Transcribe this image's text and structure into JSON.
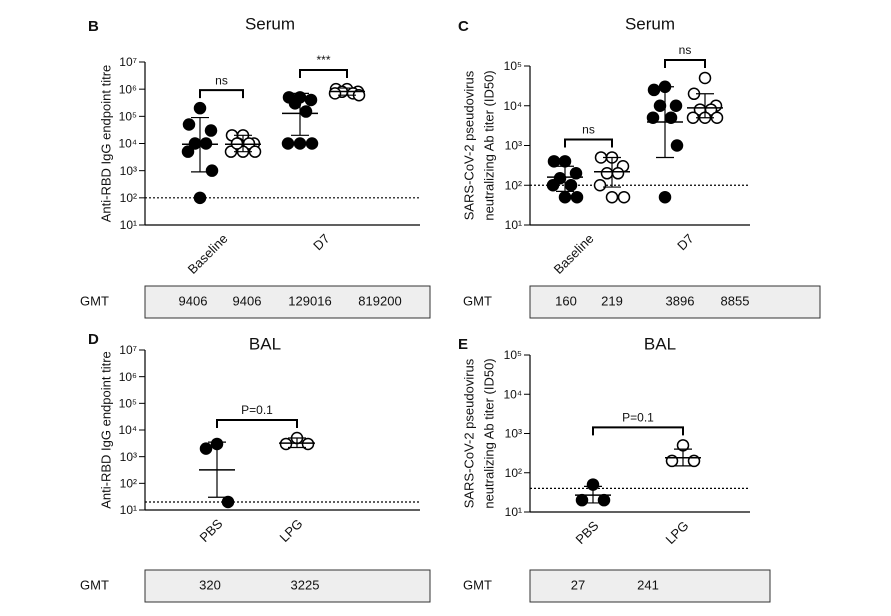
{
  "chart_data": [
    {
      "type": "dotplot",
      "panel": "B",
      "title": "Serum",
      "y_label": [
        "Anti-RBD IgG endpoint titre"
      ],
      "categories": [
        "Baseline",
        "D7"
      ],
      "log_scale": true,
      "ylim": [
        10,
        10000000
      ],
      "yticks": [
        {
          "value": 10,
          "label": "10¹"
        },
        {
          "value": 100,
          "label": "10²"
        },
        {
          "value": 1000,
          "label": "10³"
        },
        {
          "value": 10000,
          "label": "10⁴"
        },
        {
          "value": 100000,
          "label": "10⁵"
        },
        {
          "value": 1000000,
          "label": "10⁶"
        },
        {
          "value": 10000000,
          "label": "10⁷"
        }
      ],
      "threshold": 100,
      "groups": [
        {
          "marker": "filled",
          "points": [
            200000,
            50000,
            30000,
            10000,
            10000,
            5000,
            1000,
            100
          ],
          "mean": 9406,
          "lower": 900,
          "upper": 90000
        },
        {
          "marker": "open",
          "points": [
            20000,
            20000,
            10000,
            10000,
            10000,
            5000,
            5000,
            5000,
            10000
          ],
          "mean": 9406,
          "lower": 5000,
          "upper": 20000
        },
        {
          "marker": "filled",
          "points": [
            500000,
            500000,
            400000,
            300000,
            150000,
            10000,
            10000,
            10000
          ],
          "mean": 129016,
          "lower": 20000,
          "upper": 700000
        },
        {
          "marker": "open",
          "points": [
            1000000,
            1000000,
            800000,
            800000,
            700000,
            700000,
            600000
          ],
          "mean": 819200,
          "lower": 600000,
          "upper": 1100000
        }
      ],
      "bracket_labels": [
        "ns",
        "***"
      ],
      "gmt_label": "GMT",
      "gmt": [
        9406,
        9406,
        129016,
        819200
      ]
    },
    {
      "type": "dotplot",
      "panel": "C",
      "title": "Serum",
      "y_label": [
        "SARS-CoV-2 pseudovirus",
        "neutralizing Ab titer (ID50)"
      ],
      "categories": [
        "Baseline",
        "D7"
      ],
      "log_scale": true,
      "ylim": [
        10,
        100000
      ],
      "yticks": [
        {
          "value": 10,
          "label": "10¹"
        },
        {
          "value": 100,
          "label": "10²"
        },
        {
          "value": 1000,
          "label": "10³"
        },
        {
          "value": 10000,
          "label": "10⁴"
        },
        {
          "value": 100000,
          "label": "10⁵"
        }
      ],
      "threshold": 100,
      "groups": [
        {
          "marker": "filled",
          "points": [
            400,
            400,
            200,
            150,
            100,
            100,
            50,
            50
          ],
          "mean": 160,
          "lower": 70,
          "upper": 300
        },
        {
          "marker": "open",
          "points": [
            500,
            500,
            300,
            200,
            200,
            100,
            50,
            50
          ],
          "mean": 219,
          "lower": 90,
          "upper": 500
        },
        {
          "marker": "filled",
          "points": [
            30000,
            25000,
            10000,
            10000,
            5000,
            5000,
            1000,
            50
          ],
          "mean": 3896,
          "lower": 500,
          "upper": 30000
        },
        {
          "marker": "open",
          "points": [
            50000,
            20000,
            10000,
            8000,
            8000,
            5000,
            5000,
            5000
          ],
          "mean": 8855,
          "lower": 5000,
          "upper": 20000
        }
      ],
      "bracket_labels": [
        "ns",
        "ns"
      ],
      "gmt_label": "GMT",
      "gmt": [
        160,
        219,
        3896,
        8855
      ]
    },
    {
      "type": "dotplot",
      "panel": "D",
      "title": "BAL",
      "y_label": [
        "Anti-RBD IgG endpoint titre"
      ],
      "categories": [
        "PBS",
        "LPG"
      ],
      "log_scale": true,
      "ylim": [
        10,
        10000000
      ],
      "yticks": [
        {
          "value": 10,
          "label": "10¹"
        },
        {
          "value": 100,
          "label": "10²"
        },
        {
          "value": 1000,
          "label": "10³"
        },
        {
          "value": 10000,
          "label": "10⁴"
        },
        {
          "value": 100000,
          "label": "10⁵"
        },
        {
          "value": 1000000,
          "label": "10⁶"
        },
        {
          "value": 10000000,
          "label": "10⁷"
        }
      ],
      "threshold": 20,
      "groups": [
        {
          "marker": "filled",
          "points": [
            3000,
            2000,
            20
          ],
          "mean": 320,
          "lower": 30,
          "upper": 3500
        },
        {
          "marker": "open",
          "points": [
            5000,
            3000,
            3000
          ],
          "mean": 3225,
          "lower": 2200,
          "upper": 5000
        }
      ],
      "bracket_labels": [
        "P=0.1"
      ],
      "gmt_label": "GMT",
      "gmt": [
        320,
        3225
      ]
    },
    {
      "type": "dotplot",
      "panel": "E",
      "title": "BAL",
      "y_label": [
        "SARS-CoV-2 pseudovirus",
        "neutralizing Ab titer (ID50)"
      ],
      "categories": [
        "PBS",
        "LPG"
      ],
      "log_scale": true,
      "ylim": [
        10,
        100000
      ],
      "yticks": [
        {
          "value": 10,
          "label": "10¹"
        },
        {
          "value": 100,
          "label": "10²"
        },
        {
          "value": 1000,
          "label": "10³"
        },
        {
          "value": 10000,
          "label": "10⁴"
        },
        {
          "value": 100000,
          "label": "10⁵"
        }
      ],
      "threshold": 40,
      "groups": [
        {
          "marker": "filled",
          "points": [
            50,
            20,
            20
          ],
          "mean": 27,
          "lower": 17,
          "upper": 45
        },
        {
          "marker": "open",
          "points": [
            500,
            200,
            200
          ],
          "mean": 241,
          "lower": 150,
          "upper": 400
        }
      ],
      "bracket_labels": [
        "P=0.1"
      ],
      "gmt_label": "GMT",
      "gmt": [
        27,
        241
      ]
    }
  ]
}
